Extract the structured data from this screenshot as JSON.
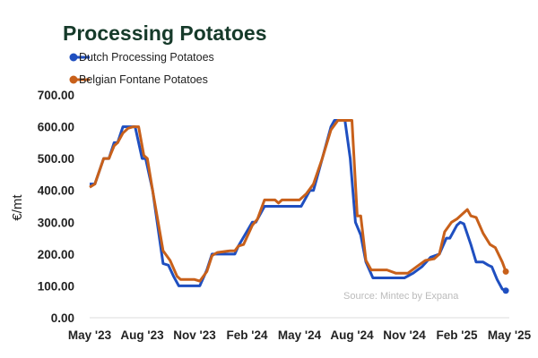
{
  "chart_data": {
    "type": "line",
    "title": "Processing Potatoes",
    "ylabel": "€/mt",
    "xlabel": "",
    "ylim": [
      0,
      700
    ],
    "xlim_months_since_may_2023": [
      0,
      24
    ],
    "yticks": [
      "0.00",
      "100.00",
      "200.00",
      "300.00",
      "400.00",
      "500.00",
      "600.00",
      "700.00"
    ],
    "xticks": [
      "May '23",
      "Aug '23",
      "Nov '23",
      "Feb '24",
      "May '24",
      "Aug '24",
      "Nov '24",
      "Feb '25",
      "May '25"
    ],
    "source": "Source: Mintec by Expana",
    "legend_placement": "top-left",
    "series": [
      {
        "name": "Dutch Processing Potatoes",
        "color": "#1f4fc0",
        "x": [
          0,
          0.3,
          0.8,
          1.1,
          1.4,
          1.6,
          1.9,
          2.6,
          3.0,
          3.2,
          3.6,
          4.2,
          4.5,
          4.8,
          5.1,
          6.3,
          6.7,
          7.0,
          8.3,
          8.5,
          9.3,
          9.5,
          10.0,
          12.1,
          12.6,
          12.8,
          13.3,
          13.8,
          14.0,
          14.6,
          14.9,
          15.2,
          15.5,
          15.8,
          16.2,
          18.0,
          18.5,
          19.0,
          19.5,
          20.0,
          20.4,
          20.6,
          21.0,
          21.2,
          21.4,
          21.8,
          22.1,
          22.5,
          22.8,
          23.0,
          23.3,
          23.6,
          23.8
        ],
        "y": [
          420,
          420,
          500,
          500,
          550,
          550,
          600,
          600,
          500,
          500,
          400,
          170,
          165,
          130,
          100,
          100,
          150,
          200,
          200,
          225,
          300,
          300,
          350,
          350,
          400,
          400,
          500,
          600,
          620,
          620,
          500,
          300,
          260,
          175,
          125,
          125,
          140,
          160,
          190,
          200,
          250,
          250,
          290,
          300,
          295,
          230,
          175,
          175,
          165,
          160,
          120,
          90,
          85
        ]
      },
      {
        "name": "Belgian Fontane Potatoes",
        "color": "#c8601a",
        "x": [
          0,
          0.3,
          0.8,
          1.1,
          1.4,
          1.6,
          1.9,
          2.2,
          2.5,
          2.8,
          3.1,
          3.3,
          3.6,
          4.2,
          4.6,
          5.0,
          5.2,
          6.0,
          6.3,
          6.7,
          7.0,
          7.3,
          8.0,
          8.3,
          8.5,
          8.8,
          9.3,
          9.6,
          10.0,
          10.6,
          10.8,
          11.0,
          12.0,
          12.4,
          12.8,
          13.3,
          13.8,
          14.2,
          15.0,
          15.3,
          15.5,
          15.8,
          16.1,
          17.0,
          17.5,
          18.2,
          18.7,
          19.2,
          19.7,
          20.0,
          20.3,
          20.7,
          21.0,
          21.3,
          21.6,
          21.8,
          22.1,
          22.5,
          22.9,
          23.2,
          23.6,
          23.8
        ],
        "y": [
          410,
          420,
          500,
          500,
          540,
          550,
          580,
          595,
          600,
          600,
          510,
          500,
          400,
          210,
          180,
          130,
          120,
          120,
          115,
          145,
          195,
          205,
          210,
          210,
          225,
          230,
          290,
          310,
          370,
          370,
          360,
          370,
          370,
          390,
          420,
          500,
          590,
          620,
          620,
          320,
          320,
          180,
          150,
          150,
          140,
          140,
          160,
          180,
          185,
          200,
          270,
          300,
          310,
          325,
          340,
          320,
          315,
          265,
          230,
          220,
          175,
          145
        ]
      }
    ]
  }
}
